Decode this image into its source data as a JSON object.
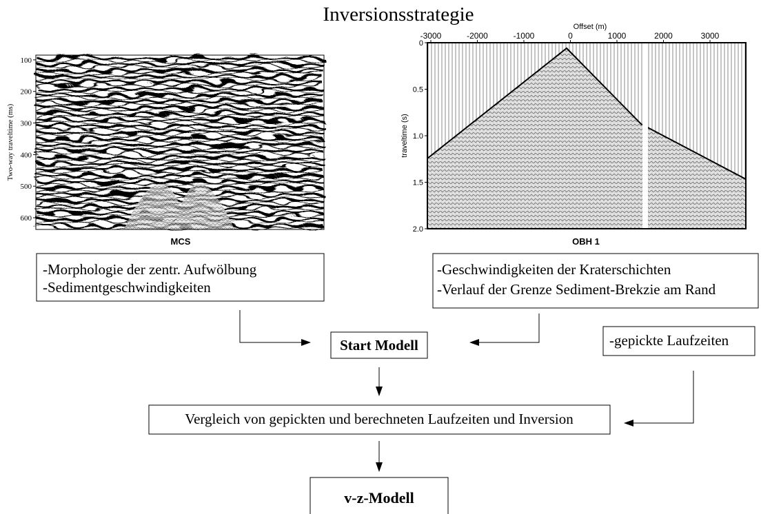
{
  "title": "Inversionsstrategie",
  "panels": [
    {
      "label": "MCS",
      "y_axis": {
        "label": "Two-way traveltime (ms)",
        "lim": [
          85,
          637
        ],
        "ticks": [
          100,
          200,
          300,
          400,
          500,
          600
        ]
      }
    },
    {
      "label": "OBH 1",
      "x_axis": {
        "label": "Offset (m)",
        "lim": [
          -3074,
          3770
        ],
        "ticks": [
          -3000,
          -2000,
          -1000,
          0,
          1000,
          2000,
          3000
        ]
      },
      "y_axis": {
        "label": "traveltime (s)",
        "lim": [
          0,
          2.0
        ],
        "ticks": [
          0,
          0.5,
          {
            "value": 1,
            "label": "1.0"
          },
          1.5,
          {
            "value": 2,
            "label": "2.0"
          }
        ]
      }
    }
  ],
  "boxes": [
    {
      "lines": [
        "-Morphologie der zentr. Aufwölbung",
        "-Sedimentgeschwindigkeiten"
      ]
    },
    {
      "lines": [
        "-Geschwindigkeiten der Kraterschichten",
        "-Verlauf der Grenze Sediment-Brekzie am Rand"
      ]
    },
    {
      "lines": [
        "Start Modell"
      ]
    },
    {
      "lines": [
        "-gepickte Laufzeiten"
      ]
    },
    {
      "lines": [
        "Vergleich von gepickten und berechneten Laufzeiten und Inversion"
      ]
    },
    {
      "lines": [
        "v-z-Modell"
      ]
    }
  ]
}
